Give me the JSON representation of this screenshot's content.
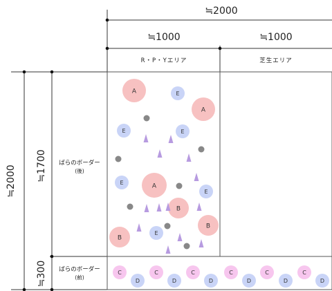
{
  "dimensions": {
    "total_width": "≒2000",
    "left_width": "≒1000",
    "right_width": "≒1000",
    "total_height": "≒2000",
    "back_height": "≒1700",
    "front_height": "≒300"
  },
  "areas": {
    "left": "R・P・Yエリア",
    "right": "芝生エリア"
  },
  "rows": {
    "back": {
      "label": "ばらのボーダー",
      "sub": "(後)"
    },
    "front": {
      "label": "ばらのボーダー",
      "sub": "(前)"
    }
  },
  "plant_letters": {
    "A": "A",
    "B": "B",
    "C": "C",
    "D": "D",
    "E": "E"
  },
  "colors": {
    "A_fill": "#f7c1c1",
    "B_fill": "#f7c1c1",
    "C_fill": "#f7c6ee",
    "D_fill": "#c9d4f7",
    "E_fill": "#c9d4f7",
    "triangle": "#b79be0",
    "dot": "#888888"
  }
}
